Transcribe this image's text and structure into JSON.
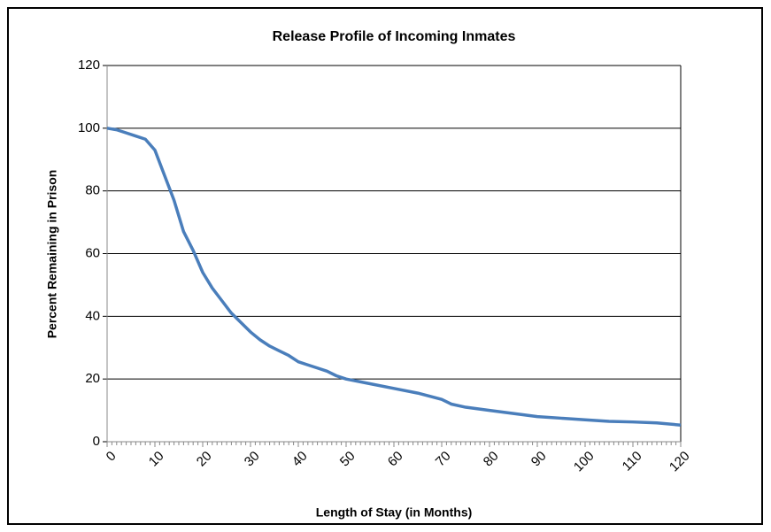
{
  "chart_data": {
    "type": "line",
    "title": "Release Profile of Incoming Inmates",
    "x_label": "Length of Stay (in Months)",
    "y_label": "Percent Remaining in Prison",
    "x": [
      0,
      2,
      4,
      6,
      8,
      10,
      12,
      14,
      16,
      18,
      20,
      22,
      24,
      26,
      28,
      30,
      32,
      34,
      36,
      38,
      40,
      42,
      44,
      46,
      48,
      50,
      55,
      60,
      65,
      70,
      72,
      75,
      80,
      85,
      90,
      95,
      100,
      105,
      110,
      115,
      120
    ],
    "series": [
      {
        "name": "Percent Remaining in Prison",
        "color": "#4a7ebb",
        "values": [
          100,
          99.5,
          98.5,
          97.5,
          96.5,
          93,
          85,
          77,
          67,
          61,
          54,
          49,
          45,
          41,
          38,
          35,
          32.5,
          30.5,
          29,
          27.5,
          25.5,
          24.5,
          23.5,
          22.5,
          21,
          20,
          18.5,
          17,
          15.5,
          13.5,
          12,
          11,
          10,
          9,
          8,
          7.5,
          7,
          6.5,
          6.3,
          6,
          5.3
        ]
      }
    ],
    "xlim": [
      0,
      120
    ],
    "xticks": [
      0,
      10,
      20,
      30,
      40,
      50,
      60,
      70,
      80,
      90,
      100,
      110,
      120
    ],
    "ylim": [
      0,
      120
    ],
    "yticks": [
      0,
      20,
      40,
      60,
      80,
      100,
      120
    ],
    "grid": true
  }
}
